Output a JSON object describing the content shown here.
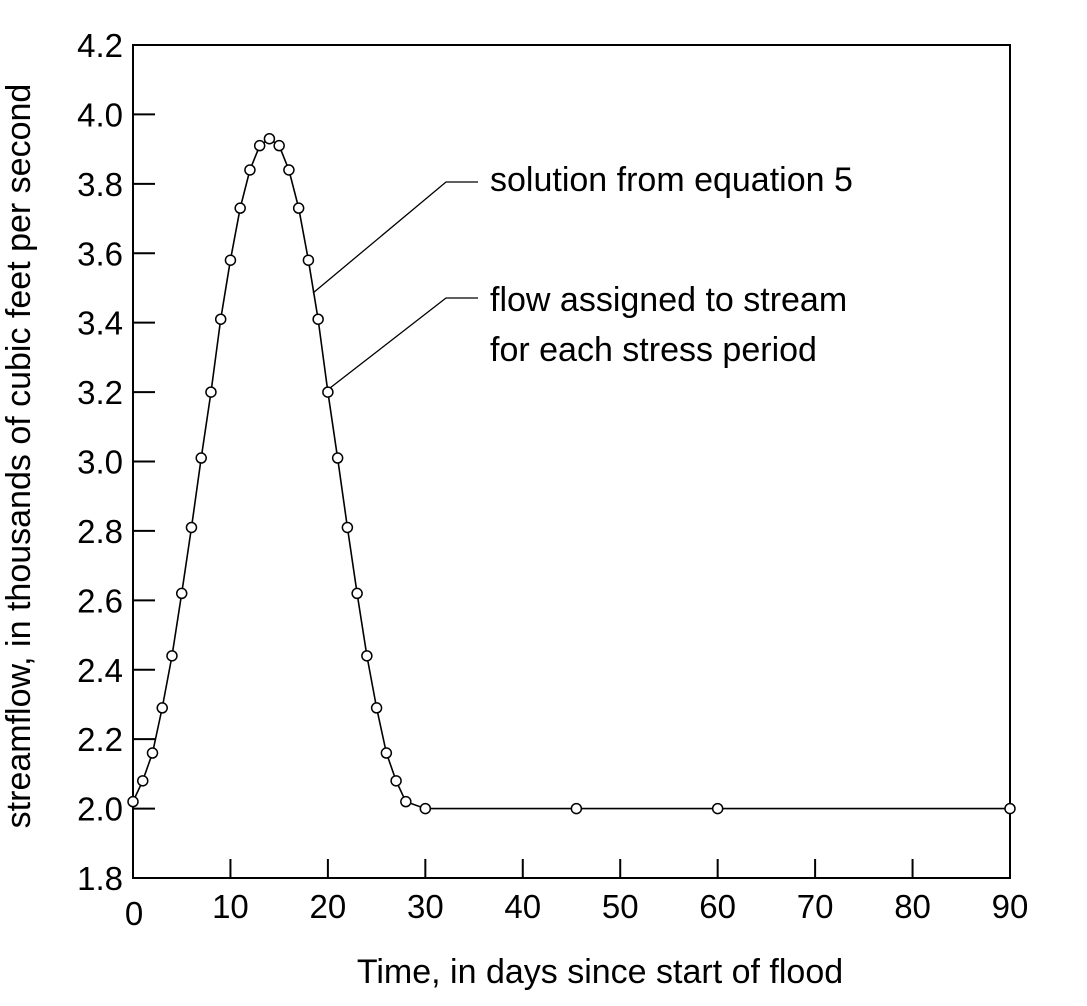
{
  "chart_data": {
    "type": "line",
    "title": "",
    "xlabel": "Time, in days since start of flood",
    "ylabel": "streamflow, in thousands of cubic feet per second",
    "xlim": [
      0,
      90
    ],
    "ylim": [
      1.8,
      4.2
    ],
    "x_ticks": [
      0,
      10,
      20,
      30,
      40,
      50,
      60,
      70,
      80,
      90
    ],
    "y_ticks": [
      1.8,
      2.0,
      2.2,
      2.4,
      2.6,
      2.8,
      3.0,
      3.2,
      3.4,
      3.6,
      3.8,
      4.0,
      4.2
    ],
    "x_tick_labels": [
      "0",
      "10",
      "20",
      "30",
      "40",
      "50",
      "60",
      "70",
      "80",
      "90"
    ],
    "y_tick_labels": [
      "1.8",
      "2.0",
      "2.2",
      "2.4",
      "2.6",
      "2.8",
      "3.0",
      "3.2",
      "3.4",
      "3.6",
      "3.8",
      "4.0",
      "4.2"
    ],
    "grid": false,
    "legend": null,
    "series": [
      {
        "name": "solution from equation 5",
        "style": "solid line",
        "x": [
          0,
          1,
          2,
          3,
          4,
          5,
          6,
          7,
          8,
          9,
          10,
          11,
          12,
          13,
          14,
          15,
          16,
          17,
          18,
          19,
          20,
          21,
          22,
          23,
          24,
          25,
          26,
          27,
          28,
          30,
          45.5,
          60,
          90
        ],
        "y": [
          2.02,
          2.08,
          2.16,
          2.29,
          2.44,
          2.62,
          2.81,
          3.01,
          3.2,
          3.41,
          3.58,
          3.73,
          3.84,
          3.91,
          3.93,
          3.91,
          3.84,
          3.73,
          3.58,
          3.41,
          3.2,
          3.01,
          2.81,
          2.62,
          2.44,
          2.29,
          2.16,
          2.08,
          2.02,
          2.0,
          2.0,
          2.0,
          2.0
        ]
      },
      {
        "name": "flow assigned to stream for each stress period",
        "style": "open circle markers",
        "x": [
          0,
          1,
          2,
          3,
          4,
          5,
          6,
          7,
          8,
          9,
          10,
          11,
          12,
          13,
          14,
          15,
          16,
          17,
          18,
          19,
          20,
          21,
          22,
          23,
          24,
          25,
          26,
          27,
          28,
          30,
          45.5,
          60,
          90
        ],
        "y": [
          2.02,
          2.08,
          2.16,
          2.29,
          2.44,
          2.62,
          2.81,
          3.01,
          3.2,
          3.41,
          3.58,
          3.73,
          3.84,
          3.91,
          3.93,
          3.91,
          3.84,
          3.73,
          3.58,
          3.41,
          3.2,
          3.01,
          2.81,
          2.62,
          2.44,
          2.29,
          2.16,
          2.08,
          2.02,
          2.0,
          2.0,
          2.0,
          2.0
        ]
      }
    ],
    "annotations": [
      {
        "text": "solution from equation 5",
        "lines": [
          "solution from equation 5"
        ],
        "points_to": {
          "x": 18.6,
          "y": 3.48
        }
      },
      {
        "text": "flow assigned to stream for each stress period",
        "lines": [
          "flow assigned to stream",
          "for each stress period"
        ],
        "points_to": {
          "x": 20,
          "y": 3.2
        }
      }
    ]
  }
}
